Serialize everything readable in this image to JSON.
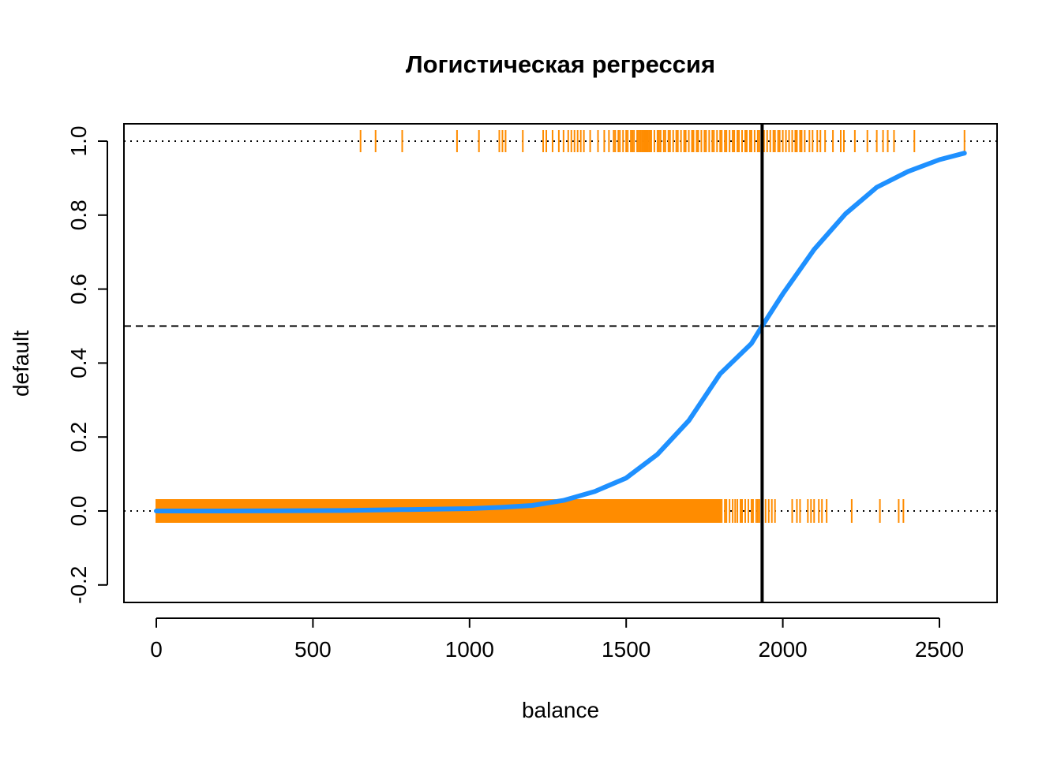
{
  "chart_data": {
    "type": "scatter",
    "title": "Логистическая регрессия",
    "xlabel": "balance",
    "ylabel": "default",
    "xlim": [
      -100,
      2690
    ],
    "ylim": [
      -0.25,
      1.05
    ],
    "xticks": [
      0,
      500,
      1000,
      1500,
      2000,
      2500
    ],
    "xtick_labels": [
      "0",
      "500",
      "1000",
      "1500",
      "2000",
      "2500"
    ],
    "yticks": [
      -0.2,
      0.0,
      0.2,
      0.4,
      0.6,
      0.8,
      1.0
    ],
    "ytick_labels": [
      "-0.2",
      "0.0",
      "0.2",
      "0.4",
      "0.6",
      "0.8",
      "1.0"
    ],
    "reference_lines": [
      {
        "orientation": "horizontal",
        "value": 0.0,
        "style": "dotted",
        "color": "#000000"
      },
      {
        "orientation": "horizontal",
        "value": 1.0,
        "style": "dotted",
        "color": "#000000"
      },
      {
        "orientation": "horizontal",
        "value": 0.5,
        "style": "dashed",
        "color": "#000000"
      },
      {
        "orientation": "vertical",
        "value": 1934,
        "style": "solid",
        "color": "#000000"
      }
    ],
    "series": [
      {
        "kind": "rug",
        "y": 1.0,
        "color": "#FF8C00",
        "x": [
          652,
          700,
          785,
          960,
          1030,
          1095,
          1105,
          1115,
          1170,
          1235,
          1245,
          1265,
          1285,
          1300,
          1315,
          1325,
          1335,
          1345,
          1355,
          1365,
          1385,
          1410,
          1430,
          1445,
          1460,
          1465,
          1475,
          1480,
          1490,
          1500,
          1505,
          1515,
          1520,
          1525,
          1535,
          1540,
          1545,
          1550,
          1555,
          1560,
          1565,
          1570,
          1575,
          1580,
          1590,
          1600,
          1605,
          1610,
          1620,
          1625,
          1635,
          1640,
          1650,
          1660,
          1665,
          1675,
          1685,
          1690,
          1700,
          1710,
          1715,
          1725,
          1730,
          1740,
          1750,
          1755,
          1765,
          1775,
          1780,
          1790,
          1800,
          1805,
          1815,
          1820,
          1830,
          1840,
          1845,
          1855,
          1860,
          1870,
          1880,
          1885,
          1895,
          1900,
          1910,
          1920,
          1925,
          1935,
          1940,
          1950,
          1960,
          1970,
          1975,
          1985,
          1990,
          2000,
          2010,
          2020,
          2030,
          2040,
          2045,
          2055,
          2060,
          2070,
          2085,
          2095,
          2110,
          2120,
          2135,
          2160,
          2185,
          2195,
          2230,
          2270,
          2300,
          2320,
          2335,
          2355,
          2420,
          2580
        ]
      },
      {
        "kind": "rug-dense",
        "y": 0.0,
        "color": "#FF8C00",
        "dense_range": [
          0,
          1800
        ],
        "x": [
          1800,
          1805,
          1815,
          1820,
          1830,
          1840,
          1848,
          1855,
          1865,
          1870,
          1880,
          1890,
          1900,
          1905,
          1915,
          1920,
          1925,
          1935,
          1945,
          1955,
          1965,
          1975,
          2030,
          2045,
          2055,
          2080,
          2090,
          2100,
          2115,
          2125,
          2140,
          2220,
          2310,
          2370,
          2385
        ]
      },
      {
        "kind": "logistic-curve",
        "color": "#1E90FF",
        "x": [
          0,
          200,
          400,
          600,
          800,
          1000,
          1100,
          1200,
          1300,
          1400,
          1500,
          1600,
          1700,
          1800,
          1900,
          1934,
          2000,
          2100,
          2200,
          2300,
          2400,
          2500,
          2580
        ],
        "y": [
          0.0,
          0.0001,
          0.0004,
          0.0013,
          0.0038,
          0.0064,
          0.0098,
          0.0149,
          0.0286,
          0.0528,
          0.0891,
          0.1532,
          0.2446,
          0.3707,
          0.4528,
          0.5,
          0.5869,
          0.707,
          0.8034,
          0.8753,
          0.9181,
          0.9498,
          0.9676
        ]
      }
    ],
    "grid": false,
    "legend": "none"
  }
}
